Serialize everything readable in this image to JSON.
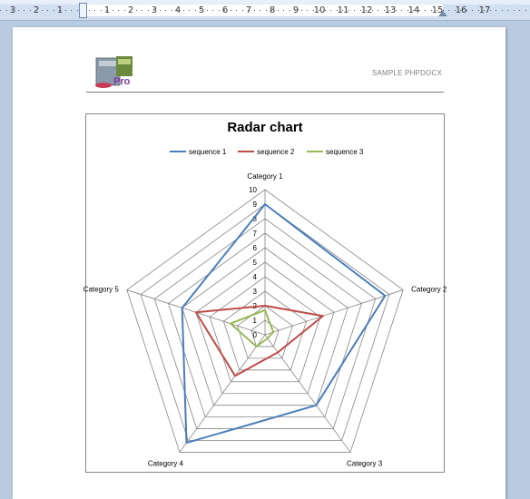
{
  "ruler": {
    "numbers": [
      "3",
      "2",
      "1",
      "1",
      "2",
      "3",
      "4",
      "5",
      "6",
      "7",
      "8",
      "9",
      "10",
      "11",
      "12",
      "13",
      "14",
      "15",
      "16",
      "17"
    ]
  },
  "header": {
    "text": "SAMPLE PHPDOCX",
    "logo_text": "Pro"
  },
  "colors": {
    "sequence_1": "#4a7ebb",
    "sequence_2": "#be4b48",
    "sequence_3": "#98b954",
    "grid": "#868686"
  },
  "chart_data": {
    "type": "radar",
    "title": "Radar chart",
    "legend_position": "top",
    "categories": [
      "Category 1",
      "Category 2",
      "Category 3",
      "Category 4",
      "Category 5"
    ],
    "rlim": [
      0,
      10
    ],
    "ticks": [
      "0",
      "1",
      "2",
      "3",
      "4",
      "5",
      "6",
      "7",
      "8",
      "9",
      "10"
    ],
    "grid": true,
    "series": [
      {
        "name": "sequence 1",
        "values": [
          9,
          8.7,
          6,
          9.2,
          6
        ]
      },
      {
        "name": "sequence 2",
        "values": [
          2,
          4.2,
          1.5,
          3.5,
          5
        ]
      },
      {
        "name": "sequence 3",
        "values": [
          1.7,
          0.6,
          0.3,
          1,
          2.5
        ]
      }
    ]
  }
}
